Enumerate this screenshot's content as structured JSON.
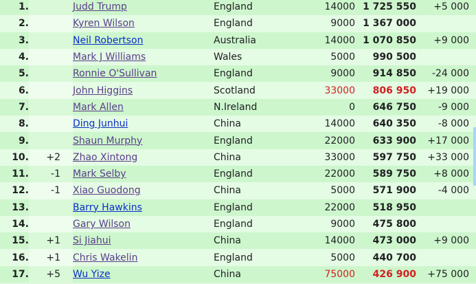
{
  "colors": {
    "visited_link": "#5b3e8a",
    "link": "#0b2fc8",
    "highlight": "#d22020",
    "row_odd": "#cdf6cd",
    "row_even": "#e4fbe4"
  },
  "rows": [
    {
      "rank": "1.",
      "change": "",
      "name": "Judd Trump",
      "visited": true,
      "country": "England",
      "points": "14000",
      "total": "1 725 550",
      "diff": "+5 000",
      "highlight": false
    },
    {
      "rank": "2.",
      "change": "",
      "name": "Kyren Wilson",
      "visited": true,
      "country": "England",
      "points": "9000",
      "total": "1 367 000",
      "diff": "",
      "highlight": false
    },
    {
      "rank": "3.",
      "change": "",
      "name": "Neil Robertson",
      "visited": false,
      "country": "Australia",
      "points": "14000",
      "total": "1 070 850",
      "diff": "+9 000",
      "highlight": false
    },
    {
      "rank": "4.",
      "change": "",
      "name": "Mark J Williams",
      "visited": true,
      "country": "Wales",
      "points": "5000",
      "total": "990 500",
      "diff": "",
      "highlight": false
    },
    {
      "rank": "5.",
      "change": "",
      "name": "Ronnie O'Sullivan",
      "visited": true,
      "country": "England",
      "points": "9000",
      "total": "914 850",
      "diff": "-24 000",
      "highlight": false
    },
    {
      "rank": "6.",
      "change": "",
      "name": "John Higgins",
      "visited": true,
      "country": "Scotland",
      "points": "33000",
      "total": "806 950",
      "diff": "+19 000",
      "highlight": true
    },
    {
      "rank": "7.",
      "change": "",
      "name": "Mark Allen",
      "visited": true,
      "country": "N.Ireland",
      "points": "0",
      "total": "646 750",
      "diff": "-9 000",
      "highlight": false
    },
    {
      "rank": "8.",
      "change": "",
      "name": "Ding Junhui",
      "visited": false,
      "country": "China",
      "points": "14000",
      "total": "640 350",
      "diff": "-8 000",
      "highlight": false
    },
    {
      "rank": "9.",
      "change": "",
      "name": "Shaun Murphy",
      "visited": true,
      "country": "England",
      "points": "22000",
      "total": "633 900",
      "diff": "+17 000",
      "highlight": false
    },
    {
      "rank": "10.",
      "change": "+2",
      "name": "Zhao Xintong",
      "visited": true,
      "country": "China",
      "points": "33000",
      "total": "597 750",
      "diff": "+33 000",
      "highlight": false
    },
    {
      "rank": "11.",
      "change": "-1",
      "name": "Mark Selby",
      "visited": true,
      "country": "England",
      "points": "22000",
      "total": "589 750",
      "diff": "+8 000",
      "highlight": false
    },
    {
      "rank": "12.",
      "change": "-1",
      "name": "Xiao Guodong",
      "visited": true,
      "country": "China",
      "points": "5000",
      "total": "571 900",
      "diff": "-4 000",
      "highlight": false
    },
    {
      "rank": "13.",
      "change": "",
      "name": "Barry Hawkins",
      "visited": false,
      "country": "England",
      "points": "22000",
      "total": "518 950",
      "diff": "",
      "highlight": false
    },
    {
      "rank": "14.",
      "change": "",
      "name": "Gary Wilson",
      "visited": true,
      "country": "England",
      "points": "9000",
      "total": "475 800",
      "diff": "",
      "highlight": false
    },
    {
      "rank": "15.",
      "change": "+1",
      "name": "Si Jiahui",
      "visited": true,
      "country": "China",
      "points": "14000",
      "total": "473 000",
      "diff": "+9 000",
      "highlight": false
    },
    {
      "rank": "16.",
      "change": "+1",
      "name": "Chris Wakelin",
      "visited": true,
      "country": "England",
      "points": "5000",
      "total": "440 700",
      "diff": "",
      "highlight": false
    },
    {
      "rank": "17.",
      "change": "+5",
      "name": "Wu Yize",
      "visited": false,
      "country": "China",
      "points": "75000",
      "total": "426 900",
      "diff": "+75 000",
      "highlight": true
    }
  ]
}
